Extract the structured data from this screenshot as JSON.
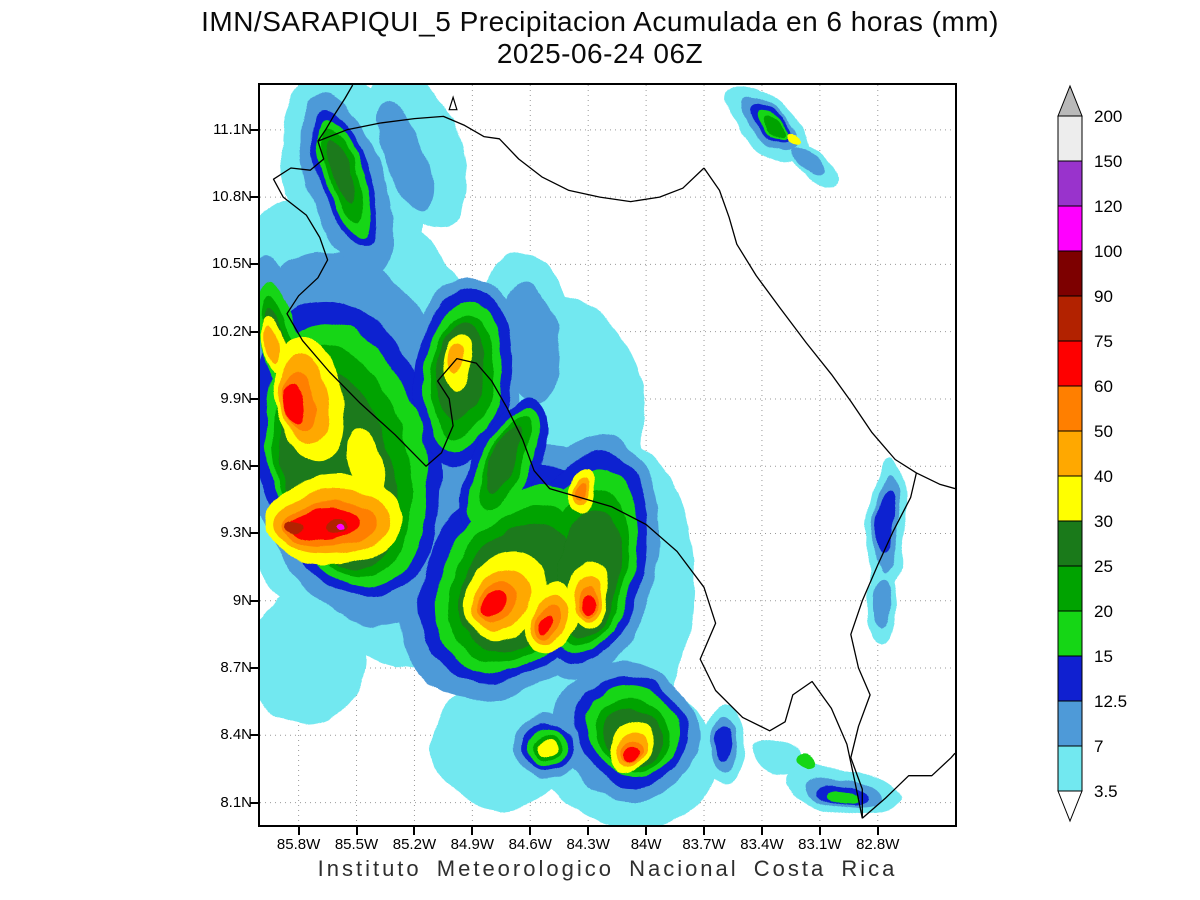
{
  "title": {
    "line1": "IMN/SARAPIQUI_5 Precipitacion Acumulada en 6 horas (mm)",
    "line2": "2025-06-24 06Z"
  },
  "footer": {
    "text": "Instituto Meteorologico Nacional Costa Rica"
  },
  "chart_data": {
    "type": "heatmap",
    "variant": "filled-contour-precipitation-map",
    "title": "IMN/SARAPIQUI_5 Precipitacion Acumulada en 6 horas (mm)",
    "subtitle": "2025-06-24 06Z",
    "units": "mm",
    "region": "Costa Rica",
    "grid_on": true,
    "legend_position": "right",
    "lon_range_w": [
      86.0,
      82.4
    ],
    "lat_range_n": [
      8.0,
      11.3
    ],
    "x_axis": {
      "ticks": [
        {
          "label": "85.8W",
          "lon": 85.8
        },
        {
          "label": "85.5W",
          "lon": 85.5
        },
        {
          "label": "85.2W",
          "lon": 85.2
        },
        {
          "label": "84.9W",
          "lon": 84.9
        },
        {
          "label": "84.6W",
          "lon": 84.6
        },
        {
          "label": "84.3W",
          "lon": 84.3
        },
        {
          "label": "84W",
          "lon": 84.0
        },
        {
          "label": "83.7W",
          "lon": 83.7
        },
        {
          "label": "83.4W",
          "lon": 83.4
        },
        {
          "label": "83.1W",
          "lon": 83.1
        },
        {
          "label": "82.8W",
          "lon": 82.8
        }
      ]
    },
    "y_axis": {
      "ticks": [
        {
          "label": "11.1N",
          "lat": 11.1
        },
        {
          "label": "10.8N",
          "lat": 10.8
        },
        {
          "label": "10.5N",
          "lat": 10.5
        },
        {
          "label": "10.2N",
          "lat": 10.2
        },
        {
          "label": "9.9N",
          "lat": 9.9
        },
        {
          "label": "9.6N",
          "lat": 9.6
        },
        {
          "label": "9.3N",
          "lat": 9.3
        },
        {
          "label": "9N",
          "lat": 9.0
        },
        {
          "label": "8.7N",
          "lat": 8.7
        },
        {
          "label": "8.4N",
          "lat": 8.4
        },
        {
          "label": "8.1N",
          "lat": 8.1
        }
      ]
    },
    "colorbar": {
      "levels": [
        3.5,
        7,
        12.5,
        15,
        20,
        25,
        30,
        40,
        50,
        60,
        75,
        90,
        100,
        120,
        150,
        200
      ],
      "band_colors_bottom_to_top": [
        "#72e8f0",
        "#4e9ad8",
        "#1020d0",
        "#15d615",
        "#00a300",
        "#1a7a1a",
        "#ffff00",
        "#ffa800",
        "#ff7f00",
        "#fe0000",
        "#b22200",
        "#7d0000",
        "#ff00ff",
        "#9933cc",
        "#ededed"
      ],
      "over_arrow_color": "#b9b9b9",
      "under_arrow_color": "#ffffff"
    },
    "cells_format": [
      "lon_w",
      "lat_n",
      "rx_deg",
      "ry_deg",
      "rotation_deg",
      "level_mm"
    ],
    "cells": [
      [
        85.5,
        9.8,
        0.78,
        1.05,
        -12,
        3.5
      ],
      [
        84.9,
        9.55,
        0.8,
        0.92,
        35,
        3.5
      ],
      [
        84.32,
        8.95,
        0.55,
        0.8,
        10,
        3.5
      ],
      [
        84.12,
        8.35,
        0.5,
        0.35,
        30,
        3.5
      ],
      [
        85.52,
        10.88,
        0.34,
        0.5,
        -18,
        3.5
      ],
      [
        85.18,
        11.02,
        0.22,
        0.38,
        -20,
        3.5
      ],
      [
        84.62,
        10.18,
        0.25,
        0.38,
        -8,
        3.5
      ],
      [
        85.9,
        10.2,
        0.22,
        0.42,
        -10,
        3.5
      ],
      [
        83.37,
        11.12,
        0.27,
        0.11,
        42,
        3.5
      ],
      [
        83.13,
        10.94,
        0.15,
        0.06,
        42,
        3.5
      ],
      [
        82.76,
        9.33,
        0.1,
        0.32,
        5,
        3.5
      ],
      [
        82.78,
        8.97,
        0.08,
        0.15,
        0,
        3.5
      ],
      [
        82.98,
        8.15,
        0.3,
        0.1,
        12,
        3.5
      ],
      [
        83.32,
        8.3,
        0.13,
        0.08,
        20,
        3.5
      ],
      [
        83.6,
        8.36,
        0.11,
        0.17,
        0,
        3.5
      ],
      [
        85.75,
        8.75,
        0.3,
        0.3,
        0,
        3.5
      ],
      [
        84.75,
        8.35,
        0.35,
        0.28,
        10,
        3.5
      ],
      [
        85.52,
        9.72,
        0.58,
        0.85,
        -12,
        7
      ],
      [
        84.95,
        10.0,
        0.3,
        0.45,
        8,
        7
      ],
      [
        84.68,
        9.12,
        0.52,
        0.62,
        35,
        7
      ],
      [
        84.3,
        9.2,
        0.36,
        0.55,
        8,
        7
      ],
      [
        84.1,
        8.42,
        0.38,
        0.3,
        30,
        7
      ],
      [
        85.55,
        10.85,
        0.2,
        0.42,
        -18,
        7
      ],
      [
        85.25,
        10.98,
        0.1,
        0.25,
        -20,
        7
      ],
      [
        83.36,
        11.12,
        0.2,
        0.075,
        42,
        7
      ],
      [
        83.15,
        10.95,
        0.09,
        0.04,
        42,
        7
      ],
      [
        85.92,
        10.2,
        0.15,
        0.33,
        -10,
        7
      ],
      [
        84.6,
        10.15,
        0.15,
        0.27,
        -8,
        7
      ],
      [
        82.76,
        9.34,
        0.065,
        0.23,
        5,
        7
      ],
      [
        82.78,
        8.98,
        0.05,
        0.1,
        0,
        7
      ],
      [
        82.98,
        8.14,
        0.2,
        0.065,
        12,
        7
      ],
      [
        83.6,
        8.36,
        0.07,
        0.12,
        0,
        7
      ],
      [
        84.52,
        8.35,
        0.17,
        0.15,
        20,
        7
      ],
      [
        85.55,
        9.68,
        0.47,
        0.68,
        -13,
        12.5
      ],
      [
        84.95,
        10.0,
        0.25,
        0.4,
        8,
        12.5
      ],
      [
        84.67,
        9.12,
        0.45,
        0.52,
        35,
        12.5
      ],
      [
        84.3,
        9.2,
        0.3,
        0.48,
        8,
        12.5
      ],
      [
        84.08,
        8.42,
        0.3,
        0.24,
        30,
        12.5
      ],
      [
        85.56,
        10.88,
        0.13,
        0.32,
        -18,
        12.5
      ],
      [
        83.35,
        11.12,
        0.15,
        0.055,
        42,
        12.5
      ],
      [
        84.73,
        9.6,
        0.18,
        0.33,
        25,
        12.5
      ],
      [
        84.52,
        8.35,
        0.13,
        0.11,
        20,
        12.5
      ],
      [
        82.98,
        8.13,
        0.13,
        0.045,
        12,
        12.5
      ],
      [
        82.76,
        9.35,
        0.045,
        0.15,
        5,
        12.5
      ],
      [
        83.6,
        8.36,
        0.045,
        0.08,
        0,
        12.5
      ],
      [
        85.55,
        9.65,
        0.4,
        0.6,
        -13,
        15
      ],
      [
        84.95,
        10.0,
        0.2,
        0.34,
        8,
        15
      ],
      [
        84.66,
        9.1,
        0.38,
        0.45,
        35,
        15
      ],
      [
        84.3,
        9.18,
        0.25,
        0.42,
        8,
        15
      ],
      [
        84.07,
        8.42,
        0.25,
        0.2,
        30,
        15
      ],
      [
        85.56,
        10.88,
        0.1,
        0.28,
        -18,
        15
      ],
      [
        83.34,
        11.11,
        0.12,
        0.04,
        42,
        15
      ],
      [
        84.73,
        9.6,
        0.14,
        0.28,
        25,
        15
      ],
      [
        84.52,
        8.35,
        0.1,
        0.09,
        20,
        15
      ],
      [
        85.9,
        10.18,
        0.1,
        0.25,
        -10,
        15
      ],
      [
        82.98,
        8.12,
        0.08,
        0.03,
        12,
        15
      ],
      [
        83.17,
        8.27,
        0.05,
        0.03,
        20,
        15
      ],
      [
        85.57,
        9.62,
        0.34,
        0.52,
        -13,
        20
      ],
      [
        84.95,
        10.0,
        0.16,
        0.28,
        8,
        20
      ],
      [
        84.66,
        9.08,
        0.32,
        0.38,
        35,
        20
      ],
      [
        84.3,
        9.15,
        0.2,
        0.36,
        8,
        20
      ],
      [
        84.07,
        8.4,
        0.2,
        0.16,
        30,
        20
      ],
      [
        85.57,
        10.9,
        0.07,
        0.22,
        -18,
        20
      ],
      [
        83.33,
        11.1,
        0.09,
        0.03,
        42,
        20
      ],
      [
        84.73,
        9.62,
        0.1,
        0.22,
        25,
        20
      ],
      [
        84.52,
        8.35,
        0.07,
        0.065,
        20,
        20
      ],
      [
        85.91,
        10.18,
        0.07,
        0.19,
        -10,
        20
      ],
      [
        85.59,
        9.58,
        0.28,
        0.45,
        -13,
        25
      ],
      [
        84.96,
        10.02,
        0.12,
        0.22,
        8,
        25
      ],
      [
        84.67,
        9.06,
        0.26,
        0.31,
        35,
        25
      ],
      [
        84.3,
        9.12,
        0.16,
        0.3,
        8,
        25
      ],
      [
        84.07,
        8.39,
        0.16,
        0.13,
        30,
        25
      ],
      [
        84.74,
        9.63,
        0.07,
        0.16,
        25,
        25
      ],
      [
        85.92,
        10.17,
        0.05,
        0.14,
        -10,
        25
      ],
      [
        85.58,
        10.92,
        0.045,
        0.15,
        -18,
        25
      ],
      [
        85.75,
        9.9,
        0.17,
        0.28,
        -12,
        30
      ],
      [
        85.62,
        9.36,
        0.36,
        0.2,
        -5,
        30
      ],
      [
        85.45,
        9.62,
        0.09,
        0.16,
        -15,
        30
      ],
      [
        84.97,
        10.06,
        0.07,
        0.13,
        8,
        30
      ],
      [
        84.73,
        9.02,
        0.19,
        0.21,
        35,
        30
      ],
      [
        84.49,
        8.93,
        0.13,
        0.16,
        20,
        30
      ],
      [
        84.3,
        9.03,
        0.1,
        0.16,
        5,
        30
      ],
      [
        84.33,
        9.5,
        0.07,
        0.1,
        0,
        30
      ],
      [
        84.08,
        8.35,
        0.1,
        0.13,
        30,
        30
      ],
      [
        84.52,
        8.35,
        0.05,
        0.045,
        20,
        30
      ],
      [
        85.93,
        10.15,
        0.06,
        0.12,
        -10,
        30
      ],
      [
        83.22,
        11.05,
        0.035,
        0.02,
        42,
        30
      ],
      [
        85.78,
        9.9,
        0.12,
        0.2,
        -12,
        40
      ],
      [
        85.63,
        9.35,
        0.3,
        0.145,
        -5,
        40
      ],
      [
        84.75,
        9.0,
        0.13,
        0.15,
        35,
        40
      ],
      [
        84.5,
        8.92,
        0.09,
        0.11,
        20,
        40
      ],
      [
        84.3,
        9.01,
        0.07,
        0.11,
        5,
        40
      ],
      [
        84.33,
        9.5,
        0.045,
        0.065,
        0,
        40
      ],
      [
        84.08,
        8.34,
        0.07,
        0.09,
        30,
        40
      ],
      [
        84.98,
        10.08,
        0.04,
        0.07,
        8,
        40
      ],
      [
        85.94,
        10.15,
        0.035,
        0.08,
        -10,
        40
      ],
      [
        85.8,
        9.89,
        0.08,
        0.14,
        -12,
        50
      ],
      [
        85.64,
        9.34,
        0.24,
        0.105,
        -5,
        50
      ],
      [
        84.77,
        8.99,
        0.09,
        0.1,
        35,
        50
      ],
      [
        84.51,
        8.91,
        0.06,
        0.075,
        20,
        50
      ],
      [
        84.3,
        9.0,
        0.05,
        0.08,
        5,
        50
      ],
      [
        84.08,
        8.33,
        0.05,
        0.06,
        30,
        50
      ],
      [
        84.33,
        9.5,
        0.03,
        0.04,
        0,
        50
      ],
      [
        85.82,
        9.88,
        0.055,
        0.1,
        -12,
        60
      ],
      [
        85.66,
        9.34,
        0.18,
        0.075,
        -5,
        60
      ],
      [
        84.79,
        8.98,
        0.055,
        0.065,
        35,
        60
      ],
      [
        84.3,
        8.99,
        0.035,
        0.055,
        5,
        60
      ],
      [
        84.08,
        8.32,
        0.035,
        0.045,
        30,
        60
      ],
      [
        84.52,
        8.9,
        0.03,
        0.04,
        20,
        60
      ],
      [
        85.6,
        9.33,
        0.06,
        0.035,
        -5,
        75
      ],
      [
        85.82,
        9.33,
        0.045,
        0.03,
        0,
        75
      ],
      [
        85.58,
        9.325,
        0.022,
        0.016,
        0,
        100
      ]
    ]
  },
  "map": {
    "island_marker_triangle": [
      [
        85.02,
        11.19
      ],
      [
        84.98,
        11.19
      ],
      [
        85.0,
        11.245
      ]
    ],
    "coastline_polylines": [
      [
        [
          85.52,
          11.3
        ],
        [
          85.56,
          11.24
        ],
        [
          85.62,
          11.16
        ],
        [
          85.66,
          11.1
        ],
        [
          85.7,
          11.05
        ]
      ],
      [
        [
          85.7,
          11.05
        ],
        [
          85.55,
          11.1
        ],
        [
          85.38,
          11.13
        ],
        [
          85.2,
          11.15
        ],
        [
          85.05,
          11.16
        ],
        [
          84.94,
          11.12
        ],
        [
          84.84,
          11.07
        ],
        [
          84.76,
          11.06
        ],
        [
          84.66,
          10.97
        ],
        [
          84.54,
          10.89
        ],
        [
          84.4,
          10.83
        ],
        [
          84.24,
          10.8
        ],
        [
          84.08,
          10.78
        ],
        [
          83.93,
          10.8
        ],
        [
          83.81,
          10.84
        ],
        [
          83.7,
          10.93
        ]
      ],
      [
        [
          83.7,
          10.93
        ],
        [
          83.62,
          10.83
        ],
        [
          83.57,
          10.71
        ],
        [
          83.53,
          10.59
        ],
        [
          83.43,
          10.45
        ],
        [
          83.31,
          10.31
        ],
        [
          83.17,
          10.15
        ],
        [
          83.04,
          10.01
        ],
        [
          82.94,
          9.89
        ],
        [
          82.83,
          9.75
        ],
        [
          82.71,
          9.63
        ],
        [
          82.6,
          9.57
        ],
        [
          82.48,
          9.52
        ],
        [
          82.4,
          9.5
        ]
      ],
      [
        [
          82.6,
          9.57
        ],
        [
          82.63,
          9.46
        ],
        [
          82.72,
          9.31
        ],
        [
          82.8,
          9.16
        ],
        [
          82.88,
          9.0
        ],
        [
          82.94,
          8.85
        ],
        [
          82.9,
          8.7
        ],
        [
          82.84,
          8.58
        ],
        [
          82.9,
          8.44
        ],
        [
          82.94,
          8.3
        ],
        [
          82.88,
          8.16
        ],
        [
          82.88,
          8.03
        ]
      ],
      [
        [
          85.7,
          11.05
        ],
        [
          85.67,
          10.97
        ],
        [
          85.74,
          10.92
        ],
        [
          85.84,
          10.93
        ],
        [
          85.93,
          10.88
        ],
        [
          85.88,
          10.8
        ],
        [
          85.76,
          10.72
        ],
        [
          85.69,
          10.62
        ],
        [
          85.65,
          10.52
        ],
        [
          85.7,
          10.44
        ],
        [
          85.8,
          10.36
        ],
        [
          85.86,
          10.28
        ],
        [
          85.78,
          10.16
        ],
        [
          85.64,
          10.02
        ],
        [
          85.48,
          9.88
        ],
        [
          85.3,
          9.74
        ],
        [
          85.14,
          9.6
        ],
        [
          85.06,
          9.66
        ],
        [
          85.0,
          9.78
        ],
        [
          85.02,
          9.9
        ],
        [
          85.08,
          9.98
        ],
        [
          84.98,
          10.08
        ],
        [
          84.88,
          10.06
        ],
        [
          84.8,
          9.98
        ],
        [
          84.72,
          9.86
        ],
        [
          84.64,
          9.72
        ],
        [
          84.58,
          9.58
        ],
        [
          84.5,
          9.5
        ],
        [
          84.34,
          9.46
        ],
        [
          84.18,
          9.42
        ],
        [
          84.0,
          9.34
        ],
        [
          83.84,
          9.22
        ],
        [
          83.7,
          9.06
        ],
        [
          83.64,
          8.9
        ],
        [
          83.72,
          8.74
        ],
        [
          83.64,
          8.6
        ],
        [
          83.5,
          8.48
        ],
        [
          83.36,
          8.42
        ],
        [
          83.28,
          8.46
        ],
        [
          83.24,
          8.58
        ],
        [
          83.14,
          8.64
        ],
        [
          83.04,
          8.52
        ],
        [
          82.96,
          8.36
        ],
        [
          82.92,
          8.2
        ],
        [
          82.88,
          8.03
        ]
      ],
      [
        [
          82.88,
          8.03
        ],
        [
          82.76,
          8.12
        ],
        [
          82.64,
          8.22
        ],
        [
          82.52,
          8.22
        ],
        [
          82.42,
          8.3
        ],
        [
          82.4,
          8.32
        ]
      ]
    ]
  }
}
